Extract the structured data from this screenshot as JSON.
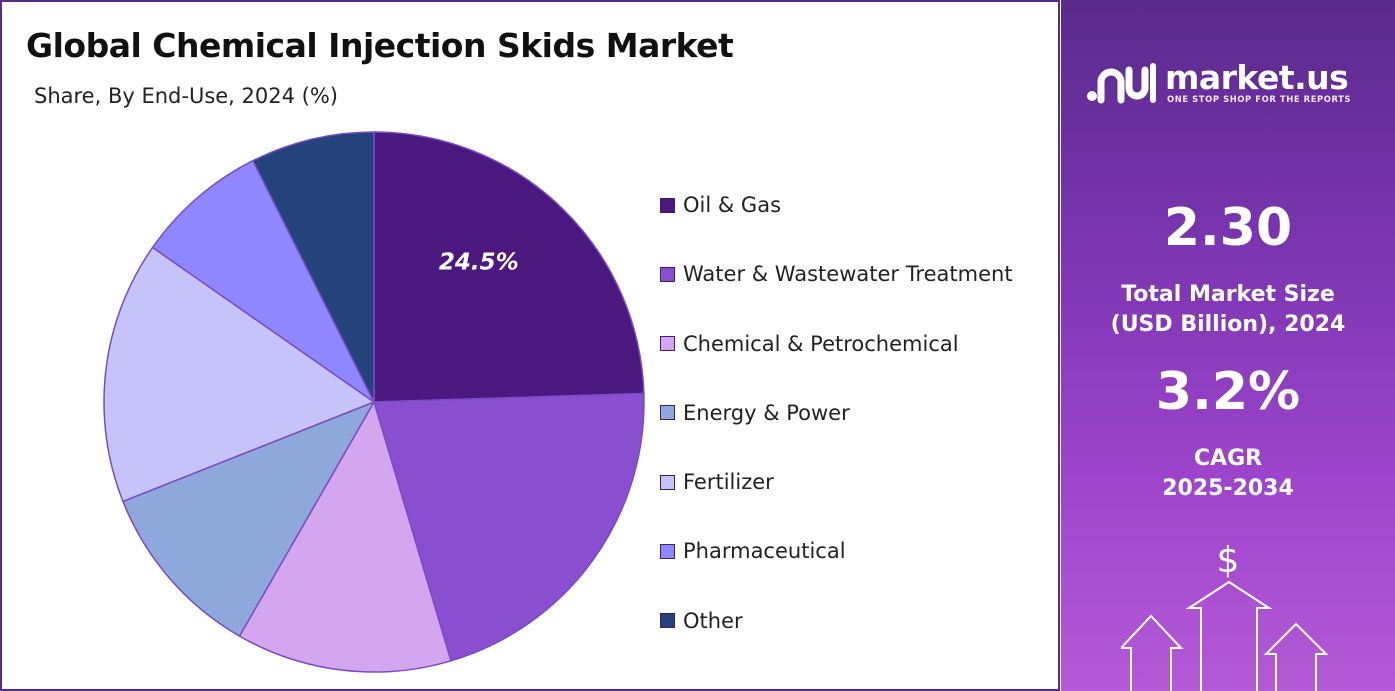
{
  "chart_data": {
    "type": "pie",
    "title": "Global Chemical Injection Skids Market",
    "subtitle": "Share, By End-Use, 2024 (%)",
    "start_angle_deg": 0,
    "direction": "clockwise",
    "slices": [
      {
        "name": "Oil & Gas",
        "value": 24.5,
        "color": "#4b1880",
        "label": "24.5%"
      },
      {
        "name": "Water & Wastewater Treatment",
        "value": 20.9,
        "color": "#8a4fd0",
        "label": ""
      },
      {
        "name": "Chemical & Petrochemical",
        "value": 12.9,
        "color": "#d4a6f0",
        "label": ""
      },
      {
        "name": "Energy & Power",
        "value": 10.7,
        "color": "#8fa8dc",
        "label": ""
      },
      {
        "name": "Fertilizer",
        "value": 15.7,
        "color": "#c6c3fa",
        "label": ""
      },
      {
        "name": "Pharmaceutical",
        "value": 7.9,
        "color": "#8f87ff",
        "label": ""
      },
      {
        "name": "Other",
        "value": 7.4,
        "color": "#24427c",
        "label": ""
      }
    ],
    "legend_position": "right"
  },
  "sidebar": {
    "logo_text": "market.us",
    "logo_tagline": "ONE STOP SHOP FOR THE REPORTS",
    "market_size_value": "2.30",
    "market_size_label_1": "Total Market Size",
    "market_size_label_2": "(USD Billion), 2024",
    "cagr_value": "3.2%",
    "cagr_label_1": "CAGR",
    "cagr_label_2": "2025-2034",
    "dollar_symbol": "$",
    "icons": [
      "market-us-logo-icon",
      "growth-arrows-icon"
    ]
  }
}
